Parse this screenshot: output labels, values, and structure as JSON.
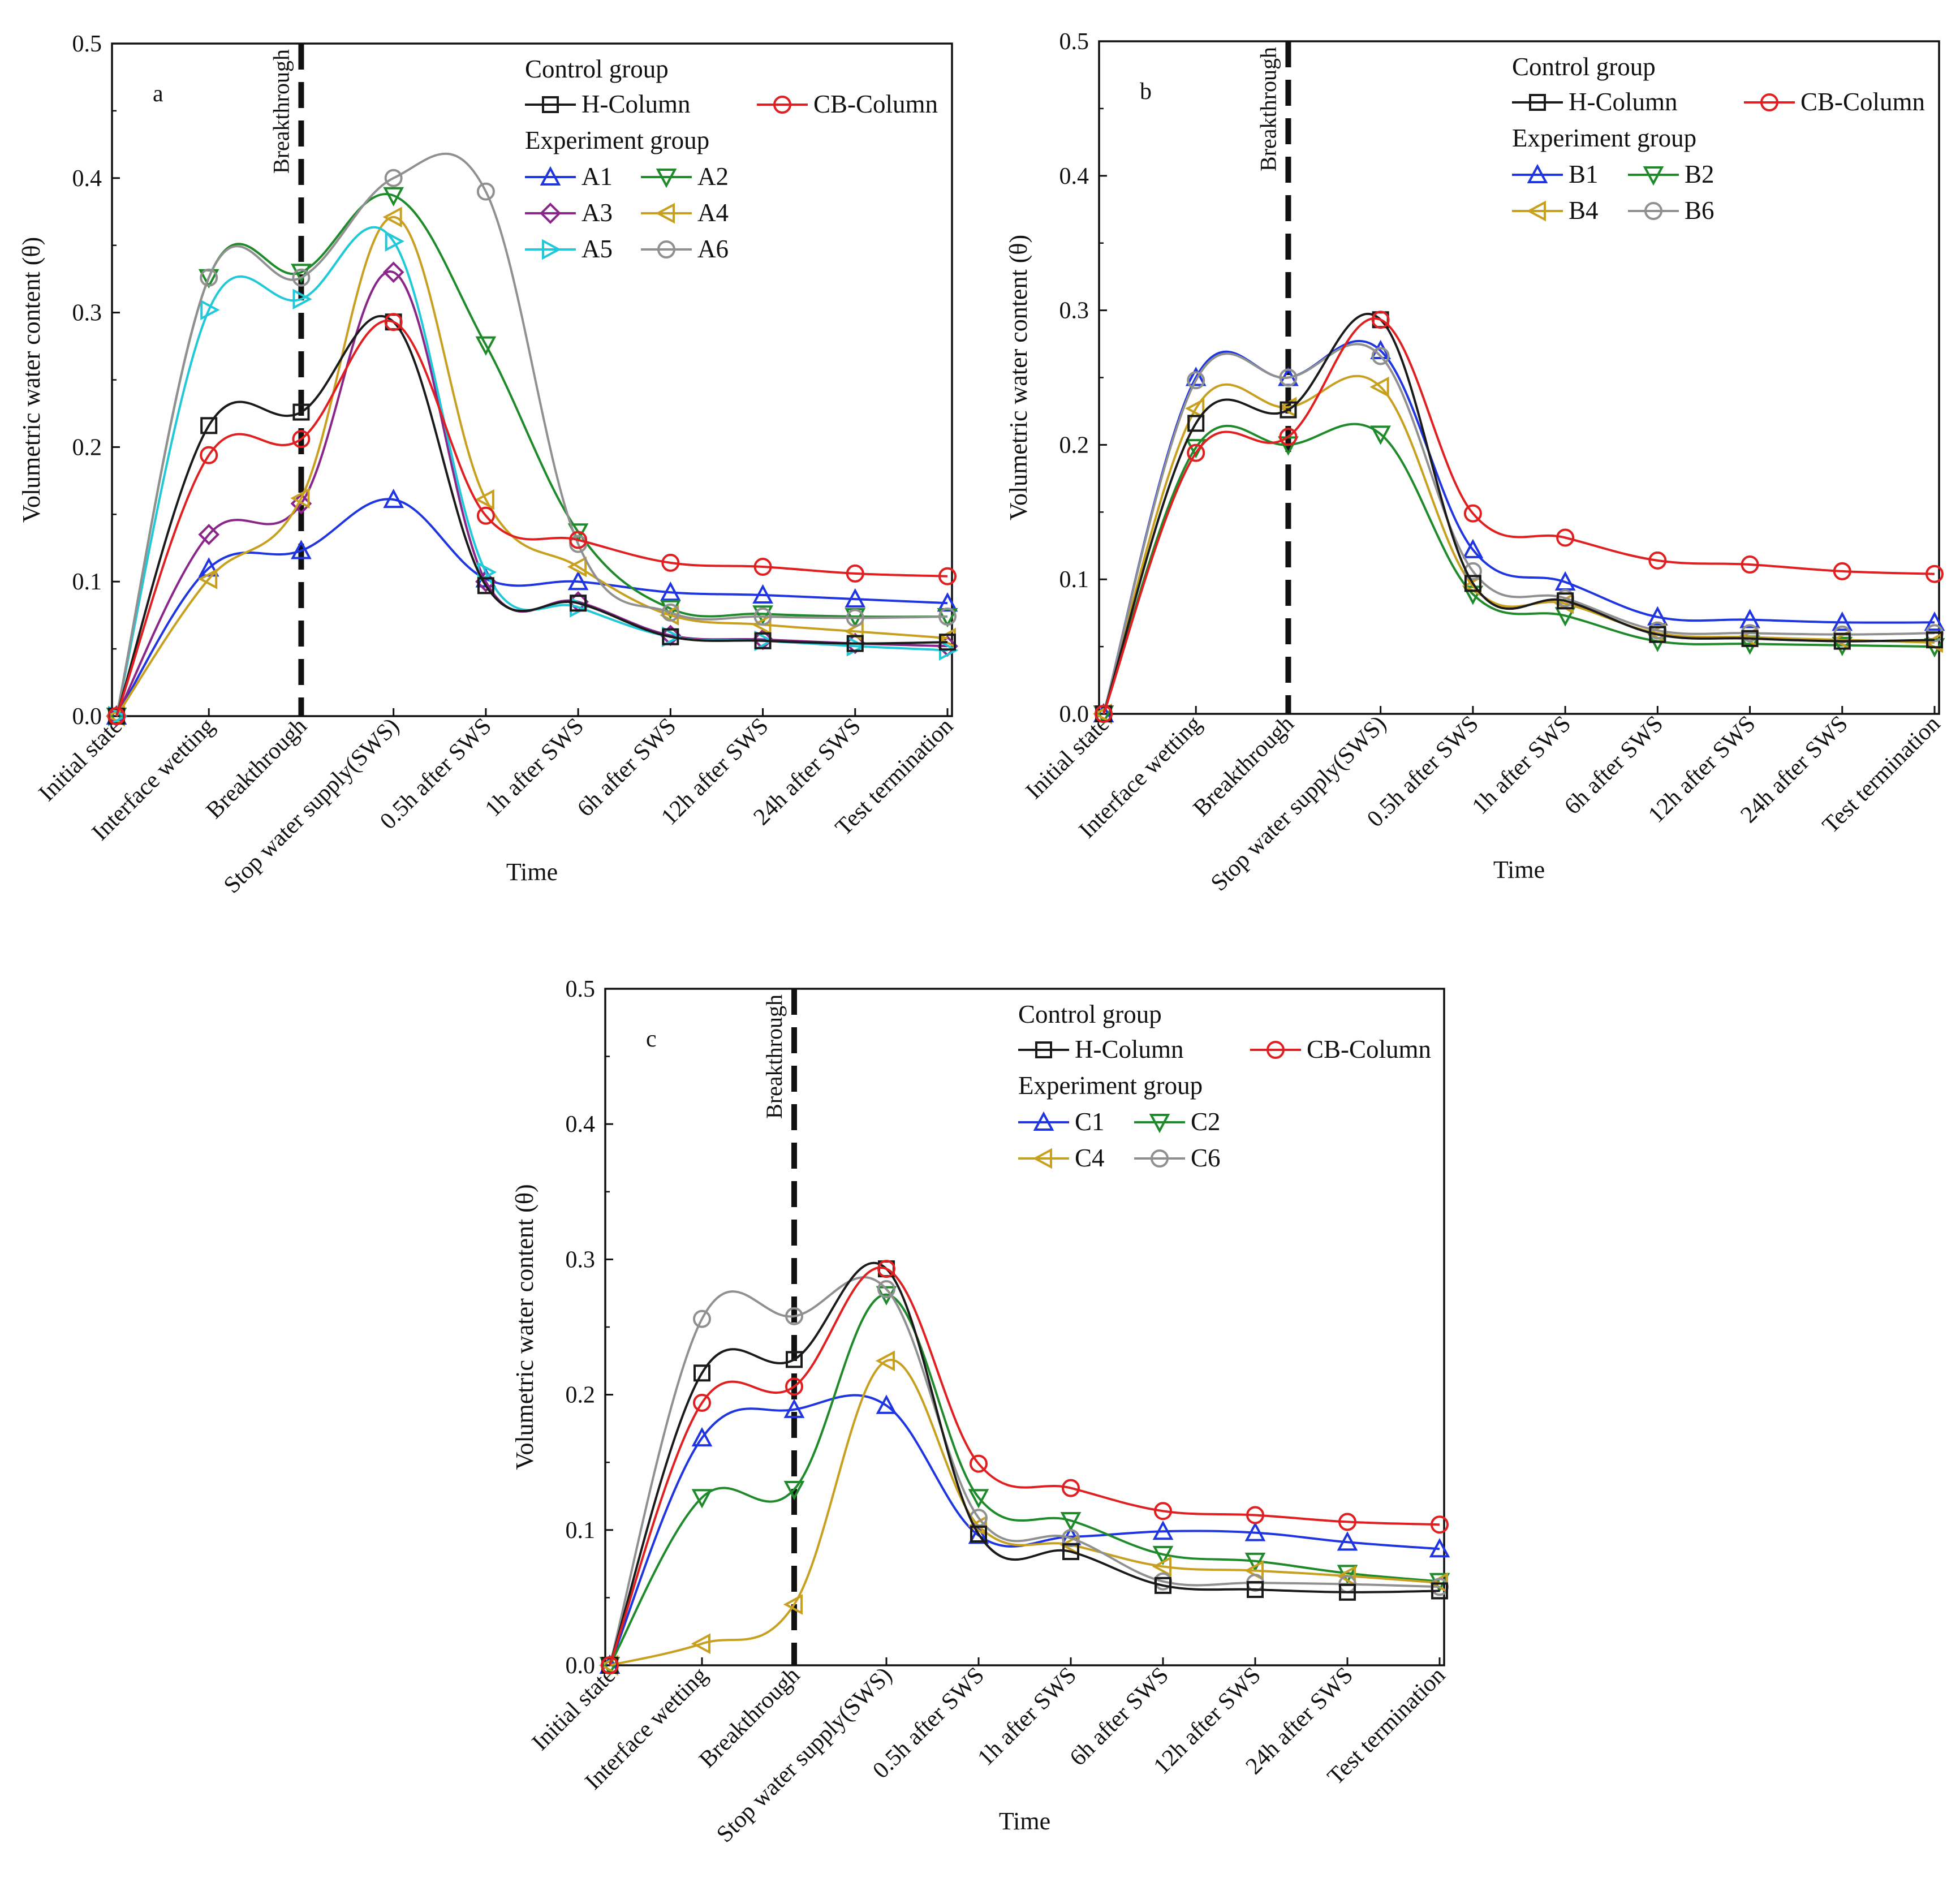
{
  "figure": {
    "legend_control_heading": "Control group",
    "legend_experiment_heading": "Experiment group",
    "breakthrough_label": "Breakthrough",
    "xlabel": "Time",
    "ylabel": "Volumetric water content (θ)",
    "categories": [
      "Initial state",
      "Interface wetting",
      "Breakthrough",
      "Stop water supply(SWS)",
      "0.5h after SWS",
      "1h after SWS",
      "6h after SWS",
      "12h after SWS",
      "24h after SWS",
      "Test termination"
    ],
    "yticks": [
      "0.0",
      "0.1",
      "0.2",
      "0.3",
      "0.4",
      "0.5"
    ]
  },
  "chart_data": [
    {
      "type": "line",
      "panel": "a",
      "xlabel": "Time",
      "ylabel": "Volumetric water content (θ)",
      "ylim": [
        0,
        0.5
      ],
      "breakthrough_index": 2,
      "categories": [
        "Initial state",
        "Interface wetting",
        "Breakthrough",
        "Stop water supply(SWS)",
        "0.5h after SWS",
        "1h after SWS",
        "6h after SWS",
        "12h after SWS",
        "24h after SWS",
        "Test termination"
      ],
      "series": [
        {
          "name": "H-Column",
          "group": "control",
          "color": "#1a1a1a",
          "marker": "square",
          "values": [
            0,
            0.216,
            0.226,
            0.293,
            0.097,
            0.084,
            0.059,
            0.056,
            0.054,
            0.055
          ]
        },
        {
          "name": "CB-Column",
          "group": "control",
          "color": "#e02020",
          "marker": "circle",
          "values": [
            0,
            0.194,
            0.206,
            0.293,
            0.149,
            0.131,
            0.114,
            0.111,
            0.106,
            0.104
          ]
        },
        {
          "name": "A1",
          "group": "experiment",
          "color": "#1f35e0",
          "marker": "triangle-up",
          "values": [
            0,
            0.11,
            0.123,
            0.161,
            0.102,
            0.1,
            0.092,
            0.09,
            0.087,
            0.084
          ]
        },
        {
          "name": "A2",
          "group": "experiment",
          "color": "#1e8a2a",
          "marker": "triangle-down",
          "values": [
            0,
            0.326,
            0.33,
            0.387,
            0.276,
            0.137,
            0.08,
            0.076,
            0.074,
            0.074
          ]
        },
        {
          "name": "A3",
          "group": "experiment",
          "color": "#8a258a",
          "marker": "diamond",
          "values": [
            0,
            0.135,
            0.158,
            0.33,
            0.1,
            0.085,
            0.06,
            0.057,
            0.054,
            0.052
          ]
        },
        {
          "name": "A4",
          "group": "experiment",
          "color": "#c8a020",
          "marker": "triangle-left",
          "values": [
            0,
            0.102,
            0.162,
            0.371,
            0.161,
            0.111,
            0.075,
            0.068,
            0.063,
            0.058
          ]
        },
        {
          "name": "A5",
          "group": "experiment",
          "color": "#20c8d8",
          "marker": "triangle-right",
          "values": [
            0,
            0.302,
            0.31,
            0.353,
            0.107,
            0.081,
            0.059,
            0.056,
            0.052,
            0.049
          ]
        },
        {
          "name": "A6",
          "group": "experiment",
          "color": "#909090",
          "marker": "circle",
          "values": [
            0,
            0.326,
            0.326,
            0.4,
            0.39,
            0.128,
            0.077,
            0.074,
            0.073,
            0.074
          ]
        }
      ]
    },
    {
      "type": "line",
      "panel": "b",
      "xlabel": "Time",
      "ylabel": "Volumetric water content (θ)",
      "ylim": [
        0,
        0.5
      ],
      "breakthrough_index": 2,
      "categories": [
        "Initial state",
        "Interface wetting",
        "Breakthrough",
        "Stop water supply(SWS)",
        "0.5h after SWS",
        "1h after SWS",
        "6h after SWS",
        "12h after SWS",
        "24h after SWS",
        "Test termination"
      ],
      "series": [
        {
          "name": "H-Column",
          "group": "control",
          "color": "#1a1a1a",
          "marker": "square",
          "values": [
            0,
            0.216,
            0.226,
            0.293,
            0.097,
            0.084,
            0.059,
            0.056,
            0.054,
            0.055
          ]
        },
        {
          "name": "CB-Column",
          "group": "control",
          "color": "#e02020",
          "marker": "circle",
          "values": [
            0,
            0.194,
            0.206,
            0.293,
            0.149,
            0.131,
            0.114,
            0.111,
            0.106,
            0.104
          ]
        },
        {
          "name": "B1",
          "group": "experiment",
          "color": "#1f35e0",
          "marker": "triangle-up",
          "values": [
            0,
            0.25,
            0.25,
            0.27,
            0.122,
            0.098,
            0.072,
            0.07,
            0.068,
            0.068
          ]
        },
        {
          "name": "B2",
          "group": "experiment",
          "color": "#1e8a2a",
          "marker": "triangle-down",
          "values": [
            0,
            0.198,
            0.2,
            0.208,
            0.089,
            0.073,
            0.054,
            0.052,
            0.051,
            0.05
          ]
        },
        {
          "name": "B4",
          "group": "experiment",
          "color": "#c8a020",
          "marker": "triangle-left",
          "values": [
            0,
            0.227,
            0.228,
            0.243,
            0.095,
            0.082,
            0.06,
            0.057,
            0.055,
            0.053
          ]
        },
        {
          "name": "B6",
          "group": "experiment",
          "color": "#909090",
          "marker": "circle",
          "values": [
            0,
            0.248,
            0.25,
            0.266,
            0.106,
            0.086,
            0.062,
            0.06,
            0.059,
            0.06
          ]
        }
      ]
    },
    {
      "type": "line",
      "panel": "c",
      "xlabel": "Time",
      "ylabel": "Volumetric water content (θ)",
      "ylim": [
        0,
        0.5
      ],
      "breakthrough_index": 2,
      "categories": [
        "Initial state",
        "Interface wetting",
        "Breakthrough",
        "Stop water supply(SWS)",
        "0.5h after SWS",
        "1h after SWS",
        "6h after SWS",
        "12h after SWS",
        "24h after SWS",
        "Test termination"
      ],
      "series": [
        {
          "name": "H-Column",
          "group": "control",
          "color": "#1a1a1a",
          "marker": "square",
          "values": [
            0,
            0.216,
            0.226,
            0.293,
            0.097,
            0.084,
            0.059,
            0.056,
            0.054,
            0.055
          ]
        },
        {
          "name": "CB-Column",
          "group": "control",
          "color": "#e02020",
          "marker": "circle",
          "values": [
            0,
            0.194,
            0.206,
            0.293,
            0.149,
            0.131,
            0.114,
            0.111,
            0.106,
            0.104
          ]
        },
        {
          "name": "C1",
          "group": "experiment",
          "color": "#1f35e0",
          "marker": "triangle-up",
          "values": [
            0,
            0.168,
            0.189,
            0.192,
            0.096,
            0.095,
            0.099,
            0.098,
            0.091,
            0.086
          ]
        },
        {
          "name": "C2",
          "group": "experiment",
          "color": "#1e8a2a",
          "marker": "triangle-down",
          "values": [
            0,
            0.124,
            0.13,
            0.274,
            0.124,
            0.107,
            0.082,
            0.077,
            0.068,
            0.062
          ]
        },
        {
          "name": "C4",
          "group": "experiment",
          "color": "#c8a020",
          "marker": "triangle-left",
          "values": [
            0,
            0.016,
            0.045,
            0.225,
            0.103,
            0.089,
            0.073,
            0.07,
            0.066,
            0.061
          ]
        },
        {
          "name": "C6",
          "group": "experiment",
          "color": "#909090",
          "marker": "circle",
          "values": [
            0,
            0.256,
            0.258,
            0.278,
            0.109,
            0.094,
            0.062,
            0.061,
            0.06,
            0.058
          ]
        }
      ]
    }
  ]
}
